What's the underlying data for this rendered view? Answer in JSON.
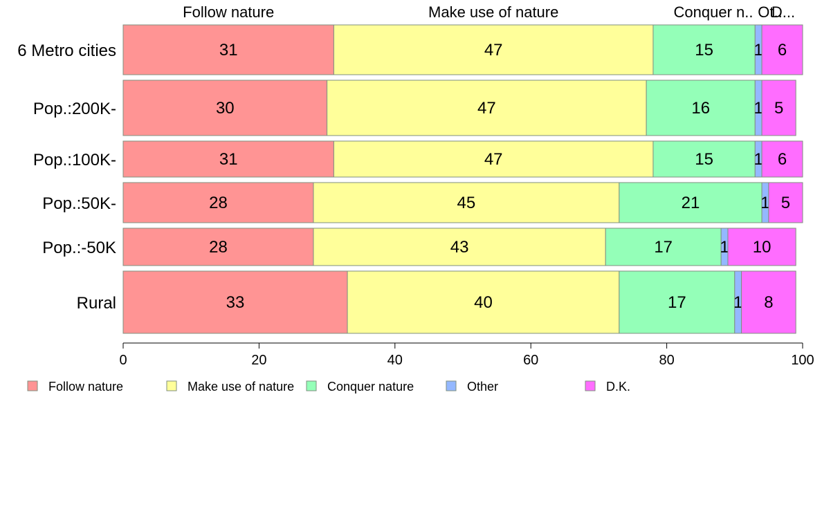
{
  "chart_data": {
    "type": "bar",
    "orientation": "horizontal",
    "stacked": true,
    "categories": [
      "6 Metro cities",
      "Pop.:200K-",
      "Pop.:100K-",
      "Pop.:50K-",
      "Pop.:-50K",
      "Rural"
    ],
    "series": [
      {
        "name": "Follow nature",
        "color": "#ff9494",
        "values": [
          31,
          30,
          31,
          28,
          28,
          33
        ]
      },
      {
        "name": "Make use of nature",
        "color": "#ffff9a",
        "values": [
          47,
          47,
          47,
          45,
          43,
          40
        ]
      },
      {
        "name": "Conquer nature",
        "color": "#94ffb8",
        "values": [
          15,
          16,
          15,
          21,
          17,
          17
        ]
      },
      {
        "name": "Other",
        "color": "#94b8ff",
        "values": [
          1,
          1,
          1,
          1,
          1,
          1
        ]
      },
      {
        "name": "D.K.",
        "color": "#ff6dff",
        "values": [
          6,
          5,
          6,
          5,
          10,
          8
        ]
      }
    ],
    "top_labels": [
      "Follow nature",
      "Make use of nature",
      "Conquer n..",
      "Ot..",
      "D..."
    ],
    "xlim": [
      0,
      100
    ],
    "xticks": [
      0,
      20,
      40,
      60,
      80,
      100
    ],
    "xlabel": "",
    "ylabel": "",
    "title": "",
    "grid": false,
    "legend_position": "bottom"
  }
}
